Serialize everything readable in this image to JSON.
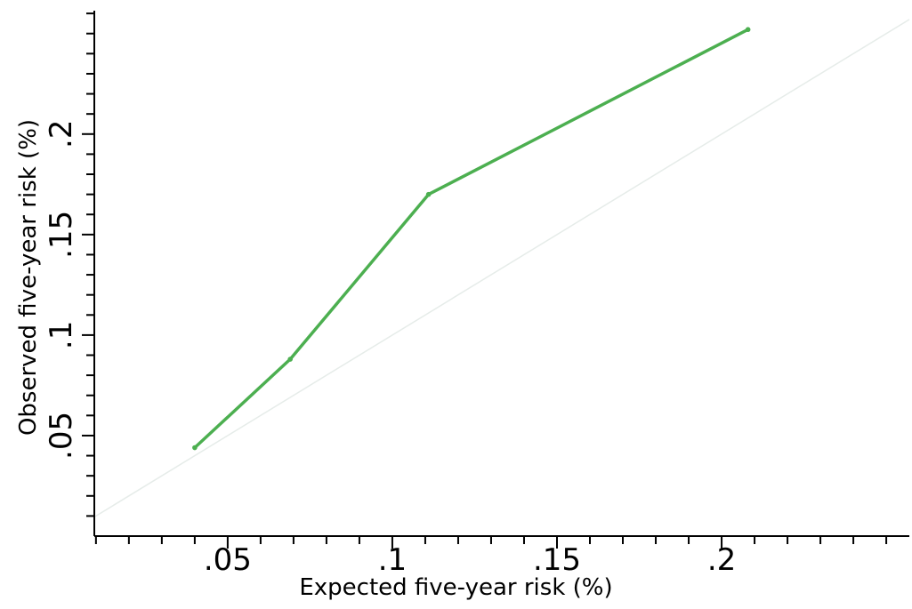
{
  "chart_data": {
    "type": "line",
    "title": "",
    "xlabel": "Expected five-year risk (%)",
    "ylabel": "Observed five-year risk (%)",
    "xlim": [
      0.0095,
      0.257
    ],
    "ylim": [
      0.0,
      0.2605
    ],
    "xticks": [
      ".05",
      ".1",
      ".15",
      ".2"
    ],
    "yticks": [
      ".05",
      ".1",
      ".15",
      ".2"
    ],
    "grid": false,
    "series": [
      {
        "x": [
          0.04,
          0.069,
          0.111,
          0.208
        ],
        "y": [
          0.044,
          0.088,
          0.17,
          0.252
        ],
        "color": "#4caf50"
      }
    ],
    "reference_line": {
      "type": "y=x",
      "color": "#e6ece9"
    }
  }
}
